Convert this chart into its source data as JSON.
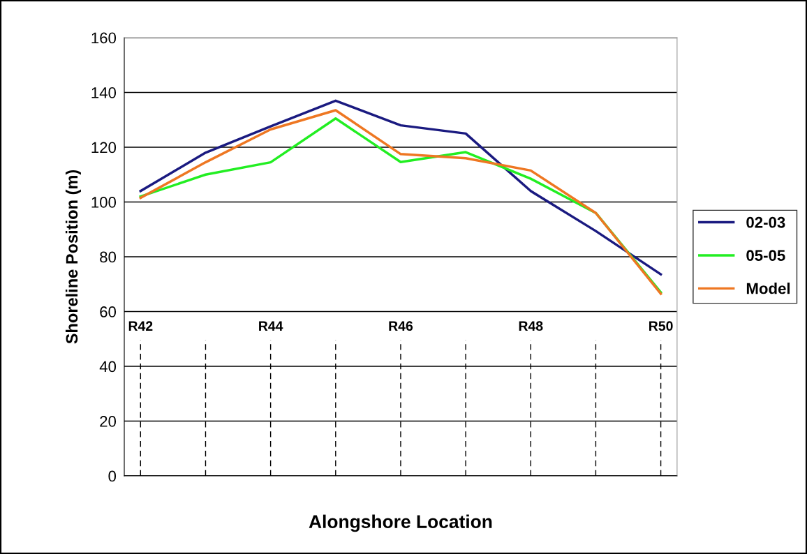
{
  "chart_data": {
    "type": "line",
    "xlabel": "Alongshore Location",
    "ylabel": "Shoreline Position (m)",
    "categories": [
      "R42",
      null,
      "R44",
      null,
      "R46",
      null,
      "R48",
      null,
      "R50"
    ],
    "ylim": [
      0,
      160
    ],
    "yticks": [
      0,
      20,
      40,
      60,
      80,
      100,
      120,
      140,
      160
    ],
    "grid": "y",
    "legend": "right",
    "line_style": "solid",
    "marker": "none",
    "series": [
      {
        "name": "02-03",
        "color": "#1a1a80",
        "values": [
          104,
          118,
          127.6,
          137,
          128,
          125,
          104,
          89.4,
          73.6
        ]
      },
      {
        "name": "05-05",
        "color": "#22ee22",
        "values": [
          102,
          110,
          114.5,
          130.5,
          114.6,
          118.2,
          108.5,
          96,
          67
        ]
      },
      {
        "name": "Model",
        "color": "#ee7722",
        "values": [
          101.5,
          114.5,
          126.5,
          133.5,
          117.5,
          116,
          111.5,
          96,
          66.5
        ]
      }
    ]
  }
}
